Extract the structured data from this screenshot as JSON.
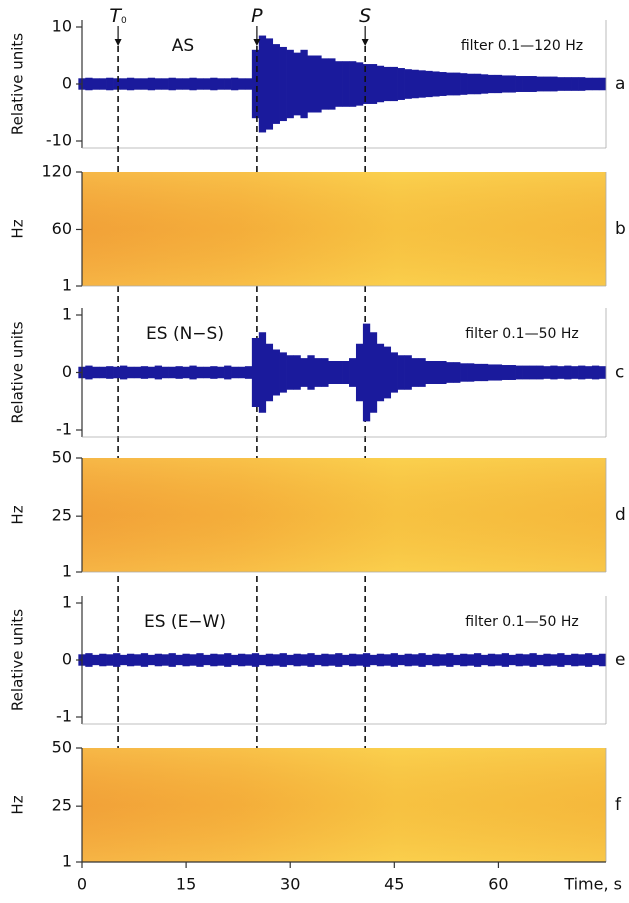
{
  "chart_data": [
    {
      "type": "area",
      "y_label": "Relative units",
      "panel_label": "a",
      "annotations": [
        "AS",
        "filter 0.1—120 Hz"
      ],
      "markers": [
        {
          "label": "T",
          "subscript": "0",
          "x": 5.2
        },
        {
          "label": "P",
          "x": 25.2
        },
        {
          "label": "S",
          "x": 40.8
        }
      ],
      "xlim": [
        0,
        75.5
      ],
      "ylim": [
        -10,
        10
      ],
      "yticks": [
        -10,
        0,
        10
      ],
      "color": "#1a1a9c",
      "x": [
        0,
        1,
        2,
        3,
        4,
        5,
        6,
        7,
        8,
        9,
        10,
        11,
        12,
        13,
        14,
        15,
        16,
        17,
        18,
        19,
        20,
        21,
        22,
        23,
        24,
        25,
        26,
        27,
        28,
        29,
        30,
        31,
        32,
        33,
        34,
        35,
        36,
        37,
        38,
        39,
        40,
        41,
        42,
        43,
        44,
        45,
        46,
        47,
        48,
        49,
        50,
        51,
        52,
        53,
        54,
        55,
        56,
        57,
        58,
        59,
        60,
        61,
        62,
        63,
        64,
        65,
        66,
        67,
        68,
        69,
        70,
        71,
        72,
        73,
        74,
        75
      ],
      "values": [
        1.0,
        1.1,
        1.0,
        1.0,
        1.1,
        1.0,
        1.0,
        1.1,
        1.0,
        1.0,
        1.1,
        1.0,
        1.0,
        1.1,
        1.0,
        1.0,
        1.1,
        1.0,
        1.0,
        1.1,
        1.0,
        1.0,
        1.1,
        1.0,
        1.0,
        6,
        8.5,
        8,
        7,
        6.5,
        6,
        5.5,
        6,
        5,
        5,
        4.5,
        4.5,
        4,
        4,
        4,
        3.8,
        3.5,
        3.5,
        3.2,
        3,
        3,
        2.8,
        2.6,
        2.5,
        2.4,
        2.3,
        2.2,
        2.1,
        2,
        2,
        1.9,
        1.8,
        1.8,
        1.7,
        1.6,
        1.6,
        1.5,
        1.5,
        1.4,
        1.4,
        1.4,
        1.3,
        1.3,
        1.3,
        1.2,
        1.2,
        1.2,
        1.2,
        1.1,
        1.1,
        1.1
      ]
    },
    {
      "type": "spectrogram",
      "y_label": "Hz",
      "panel_label": "b",
      "xlim": [
        0,
        75.5
      ],
      "ylim": [
        1,
        120
      ],
      "yticks": [
        1,
        60,
        120
      ]
    },
    {
      "type": "area",
      "y_label": "Relative units",
      "panel_label": "c",
      "annotations": [
        "ES (N−S)",
        "filter 0.1—50 Hz"
      ],
      "xlim": [
        0,
        75.5
      ],
      "ylim": [
        -1,
        1
      ],
      "yticks": [
        -1,
        0,
        1
      ],
      "color": "#1a1a9c",
      "x": [
        0,
        1,
        2,
        3,
        4,
        5,
        6,
        7,
        8,
        9,
        10,
        11,
        12,
        13,
        14,
        15,
        16,
        17,
        18,
        19,
        20,
        21,
        22,
        23,
        24,
        25,
        26,
        27,
        28,
        29,
        30,
        31,
        32,
        33,
        34,
        35,
        36,
        37,
        38,
        39,
        40,
        41,
        42,
        43,
        44,
        45,
        46,
        47,
        48,
        49,
        50,
        51,
        52,
        53,
        54,
        55,
        56,
        57,
        58,
        59,
        60,
        61,
        62,
        63,
        64,
        65,
        66,
        67,
        68,
        69,
        70,
        71,
        72,
        73,
        74,
        75
      ],
      "values": [
        0.1,
        0.12,
        0.1,
        0.1,
        0.11,
        0.1,
        0.12,
        0.1,
        0.1,
        0.11,
        0.1,
        0.12,
        0.1,
        0.1,
        0.11,
        0.1,
        0.12,
        0.1,
        0.1,
        0.11,
        0.1,
        0.12,
        0.1,
        0.1,
        0.11,
        0.6,
        0.7,
        0.5,
        0.4,
        0.35,
        0.3,
        0.3,
        0.25,
        0.3,
        0.25,
        0.25,
        0.2,
        0.2,
        0.2,
        0.25,
        0.5,
        0.85,
        0.7,
        0.5,
        0.45,
        0.35,
        0.3,
        0.3,
        0.25,
        0.25,
        0.2,
        0.2,
        0.2,
        0.18,
        0.18,
        0.16,
        0.16,
        0.15,
        0.15,
        0.14,
        0.14,
        0.13,
        0.13,
        0.12,
        0.12,
        0.12,
        0.12,
        0.11,
        0.12,
        0.11,
        0.12,
        0.11,
        0.12,
        0.11,
        0.12,
        0.11
      ]
    },
    {
      "type": "spectrogram",
      "y_label": "Hz",
      "panel_label": "d",
      "xlim": [
        0,
        75.5
      ],
      "ylim": [
        1,
        50
      ],
      "yticks": [
        1,
        25,
        50
      ]
    },
    {
      "type": "area",
      "y_label": "Relative units",
      "panel_label": "e",
      "annotations": [
        "ES (E−W)",
        "filter 0.1—50 Hz"
      ],
      "xlim": [
        0,
        75.5
      ],
      "ylim": [
        -1,
        1
      ],
      "yticks": [
        -1,
        0,
        1
      ],
      "color": "#1a1a9c",
      "x": [
        0,
        1,
        2,
        3,
        4,
        5,
        6,
        7,
        8,
        9,
        10,
        11,
        12,
        13,
        14,
        15,
        16,
        17,
        18,
        19,
        20,
        21,
        22,
        23,
        24,
        25,
        26,
        27,
        28,
        29,
        30,
        31,
        32,
        33,
        34,
        35,
        36,
        37,
        38,
        39,
        40,
        41,
        42,
        43,
        44,
        45,
        46,
        47,
        48,
        49,
        50,
        51,
        52,
        53,
        54,
        55,
        56,
        57,
        58,
        59,
        60,
        61,
        62,
        63,
        64,
        65,
        66,
        67,
        68,
        69,
        70,
        71,
        72,
        73,
        74,
        75
      ],
      "values": [
        0.1,
        0.12,
        0.09,
        0.11,
        0.1,
        0.12,
        0.09,
        0.11,
        0.1,
        0.12,
        0.09,
        0.11,
        0.1,
        0.12,
        0.09,
        0.11,
        0.1,
        0.12,
        0.09,
        0.11,
        0.1,
        0.12,
        0.09,
        0.11,
        0.1,
        0.12,
        0.09,
        0.11,
        0.1,
        0.12,
        0.09,
        0.11,
        0.1,
        0.12,
        0.09,
        0.11,
        0.1,
        0.12,
        0.09,
        0.11,
        0.1,
        0.12,
        0.09,
        0.11,
        0.1,
        0.12,
        0.09,
        0.11,
        0.1,
        0.12,
        0.09,
        0.11,
        0.1,
        0.12,
        0.09,
        0.11,
        0.1,
        0.12,
        0.09,
        0.11,
        0.1,
        0.12,
        0.09,
        0.11,
        0.1,
        0.12,
        0.09,
        0.11,
        0.1,
        0.12,
        0.09,
        0.11,
        0.1,
        0.12,
        0.09,
        0.11
      ]
    },
    {
      "type": "spectrogram",
      "y_label": "Hz",
      "panel_label": "f",
      "xlim": [
        0,
        75.5
      ],
      "ylim": [
        1,
        50
      ],
      "yticks": [
        1,
        25,
        50
      ],
      "xticks": [
        0,
        15,
        30,
        45,
        60
      ],
      "x_label": "Time, s"
    }
  ]
}
